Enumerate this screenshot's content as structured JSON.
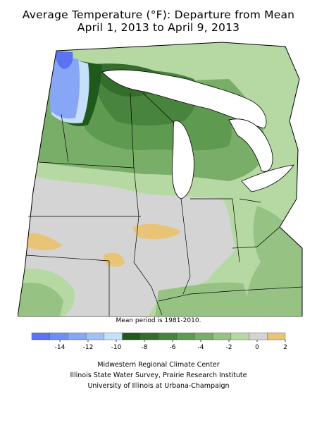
{
  "title_line1": "Average Temperature (°F): Departure from Mean",
  "title_line2": "April 1, 2013 to April 9, 2013",
  "note": "Mean period is 1981-2010.",
  "legend": {
    "colors": [
      "#5b73f0",
      "#6f8ef4",
      "#87a6f6",
      "#a3bff8",
      "#c6dffb",
      "#1f5a1c",
      "#346d2c",
      "#48843d",
      "#5f9a51",
      "#79ae68",
      "#96c384",
      "#b6d9a4",
      "#d4d4d4",
      "#e9c477"
    ],
    "tick_labels": [
      "-14",
      "-12",
      "-10",
      "-8",
      "-6",
      "-4",
      "-2",
      "0",
      "2"
    ],
    "tick_values": [
      -14,
      -12,
      -10,
      -8,
      -6,
      -4,
      -2,
      0,
      2
    ],
    "min": -16,
    "max": 2
  },
  "credits": {
    "line1": "Midwestern Regional Climate Center",
    "line2": "Illinois State Water Survey, Prairie Research Institute",
    "line3": "University of Illinois at Urbana-Champaign"
  }
}
